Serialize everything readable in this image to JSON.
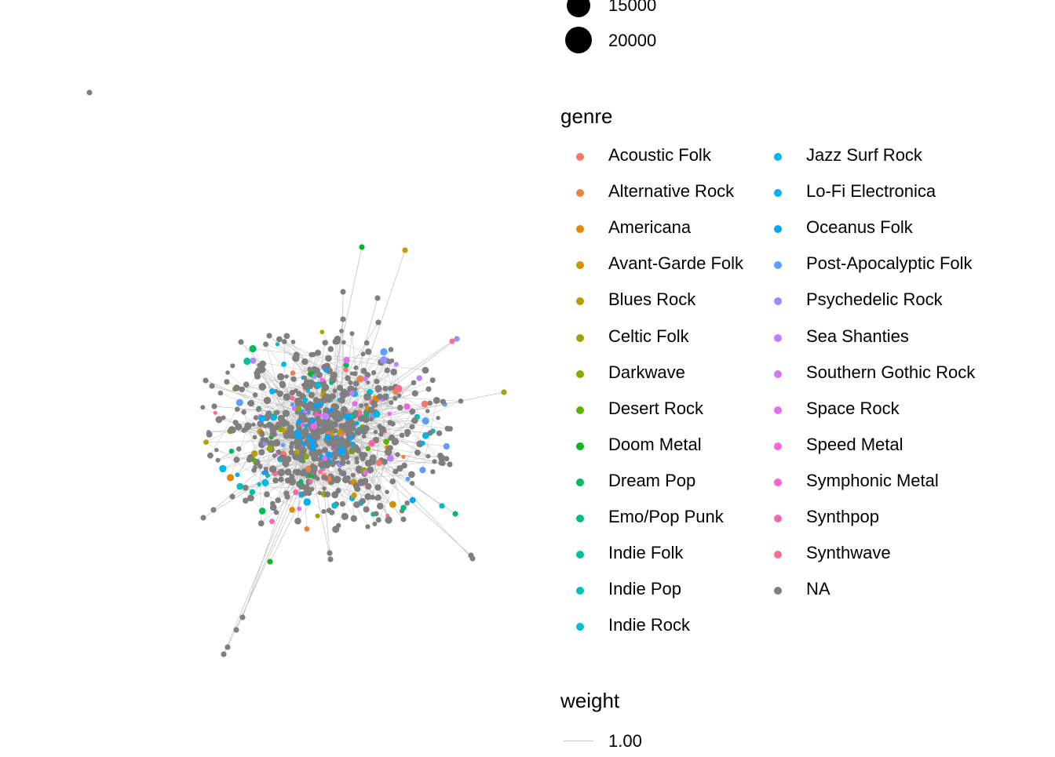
{
  "legends": {
    "size": {
      "items": [
        {
          "label": "15000",
          "value": 15000
        },
        {
          "label": "20000",
          "value": 20000
        }
      ]
    },
    "genre": {
      "title": "genre",
      "items": [
        {
          "label": "Acoustic Folk",
          "color": "#F8766D"
        },
        {
          "label": "Alternative Rock",
          "color": "#EE8044"
        },
        {
          "label": "Americana",
          "color": "#E18A00"
        },
        {
          "label": "Avant-Garde Folk",
          "color": "#CF9400"
        },
        {
          "label": "Blues Rock",
          "color": "#B99E00"
        },
        {
          "label": "Celtic Folk",
          "color": "#9FA600"
        },
        {
          "label": "Darkwave",
          "color": "#81AD00"
        },
        {
          "label": "Desert Rock",
          "color": "#5AB300"
        },
        {
          "label": "Doom Metal",
          "color": "#00B81F"
        },
        {
          "label": "Dream Pop",
          "color": "#00BC59"
        },
        {
          "label": "Emo/Pop Punk",
          "color": "#00BF7D"
        },
        {
          "label": "Indie Folk",
          "color": "#00C19C"
        },
        {
          "label": "Indie Pop",
          "color": "#00C0B8"
        },
        {
          "label": "Indie Rock",
          "color": "#00BDD1"
        },
        {
          "label": "Jazz Surf Rock",
          "color": "#00B8E5"
        },
        {
          "label": "Lo-Fi Electronica",
          "color": "#00B0F6"
        },
        {
          "label": "Oceanus Folk",
          "color": "#00A5FF"
        },
        {
          "label": "Post-Apocalyptic Folk",
          "color": "#619CFF"
        },
        {
          "label": "Psychedelic Rock",
          "color": "#9590FF"
        },
        {
          "label": "Sea Shanties",
          "color": "#B983FF"
        },
        {
          "label": "Southern Gothic Rock",
          "color": "#D376FF"
        },
        {
          "label": "Space Rock",
          "color": "#E76BF3"
        },
        {
          "label": "Speed Metal",
          "color": "#F564E3"
        },
        {
          "label": "Symphonic Metal",
          "color": "#FD61D1"
        },
        {
          "label": "Synthpop",
          "color": "#FF64B0"
        },
        {
          "label": "Synthwave",
          "color": "#FF6C91"
        },
        {
          "label": "NA",
          "color": "#7F7F7F"
        }
      ]
    },
    "weight": {
      "title": "weight",
      "items": [
        {
          "label": "1.00"
        }
      ]
    }
  },
  "graph": {
    "na_color": "#7F7F7F",
    "edge_color": "#BEBEBE"
  }
}
